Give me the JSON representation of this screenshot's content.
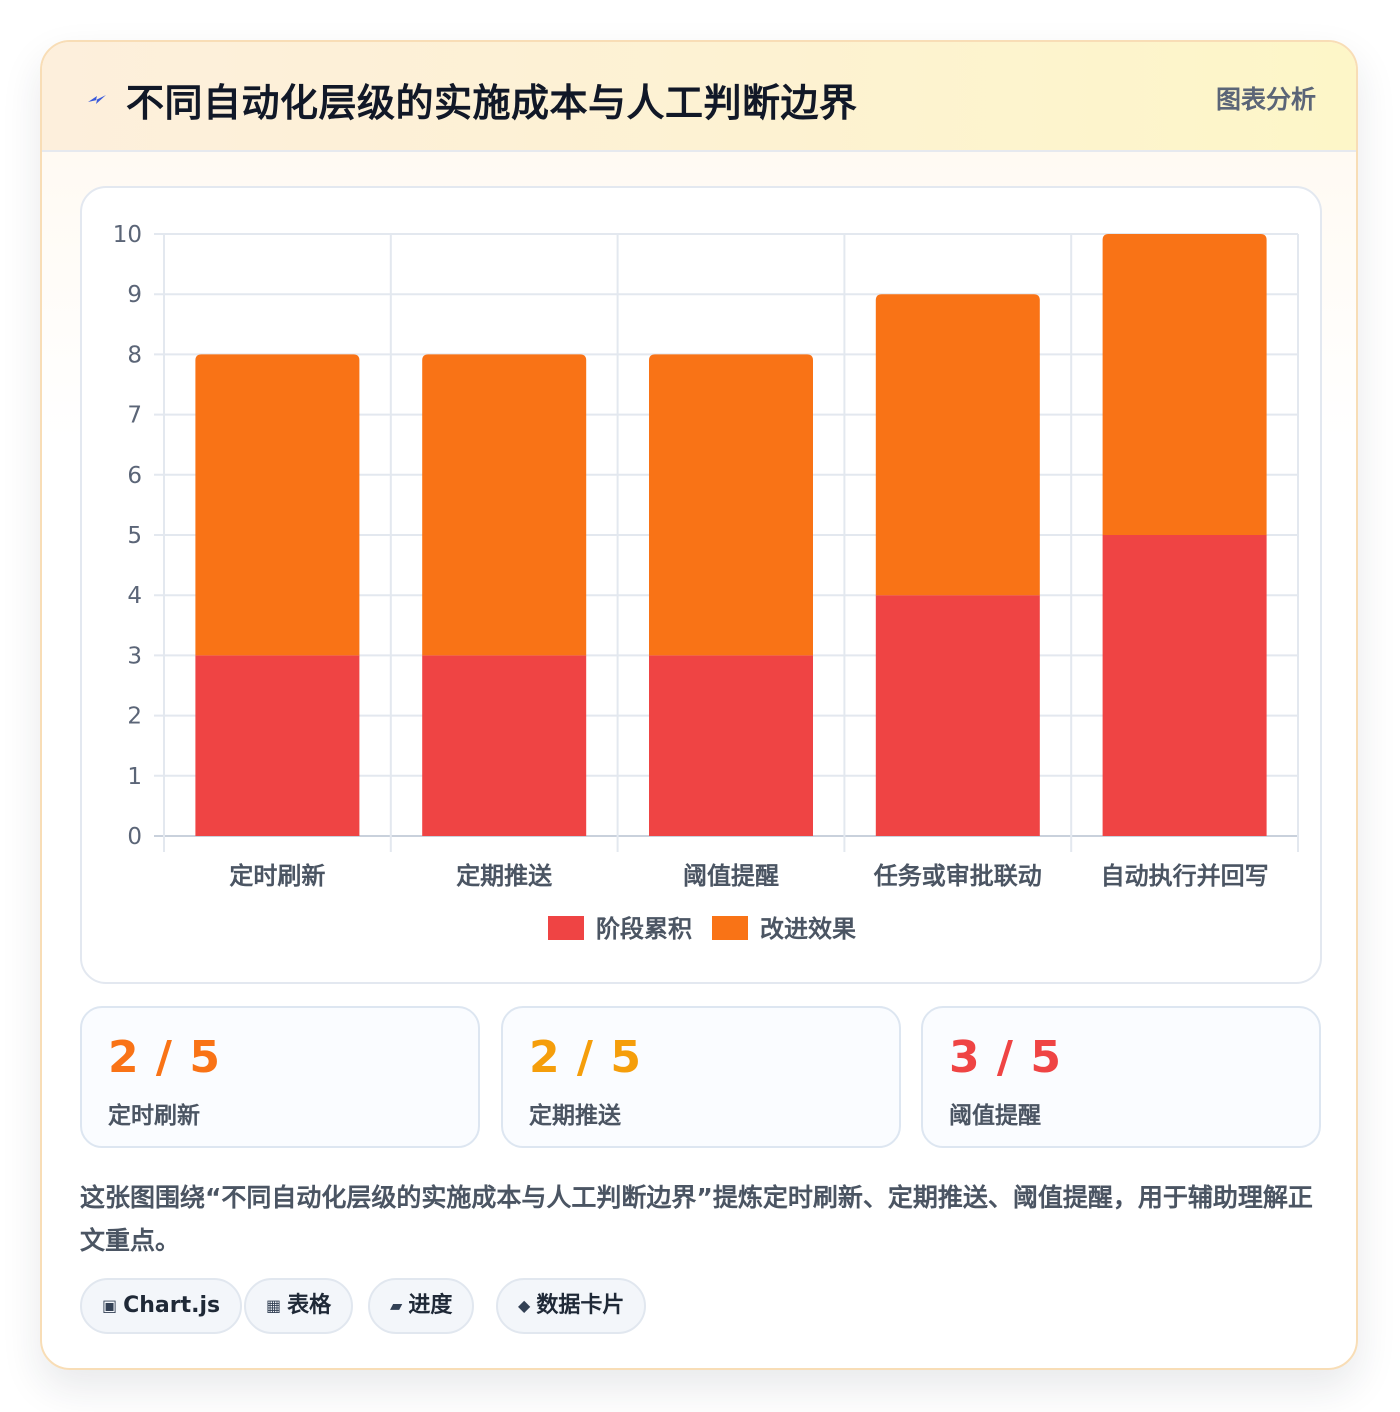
{
  "header": {
    "title": "不同自动化层级的实施成本与人工判断边界",
    "tag": "图表分析"
  },
  "chart_data": {
    "type": "bar",
    "stacked": true,
    "categories": [
      "定时刷新",
      "定期推送",
      "阈值提醒",
      "任务或审批联动",
      "自动执行并回写"
    ],
    "series": [
      {
        "name": "阶段累积",
        "color": "#ef4444",
        "values": [
          3,
          3,
          3,
          4,
          5
        ]
      },
      {
        "name": "改进效果",
        "color": "#f97316",
        "values": [
          5,
          5,
          5,
          5,
          5
        ]
      }
    ],
    "ylim": [
      0,
      10
    ],
    "yticks": [
      "0",
      "1",
      "2",
      "3",
      "4",
      "5",
      "6",
      "7",
      "8",
      "9",
      "10"
    ],
    "grid": true,
    "legend": "bottom"
  },
  "stats": [
    {
      "value": "2 / 5",
      "label": "定时刷新",
      "color": "#f97316"
    },
    {
      "value": "2 / 5",
      "label": "定期推送",
      "color": "#f59e0b"
    },
    {
      "value": "3 / 5",
      "label": "阈值提醒",
      "color": "#ef4444"
    }
  ],
  "description": "这张图围绕“不同自动化层级的实施成本与人工判断边界”提炼定时刷新、定期推送、阈值提醒，用于辅助理解正文重点。",
  "pills": [
    {
      "icon": "▣",
      "icon_name": "chartjs-icon",
      "label": "Chart.js"
    },
    {
      "icon": "▦",
      "icon_name": "table-icon",
      "label": "表格"
    },
    {
      "icon": "▰",
      "icon_name": "progress-icon",
      "label": "进度"
    },
    {
      "icon": "◆",
      "icon_name": "card-icon",
      "label": "数据卡片"
    }
  ]
}
